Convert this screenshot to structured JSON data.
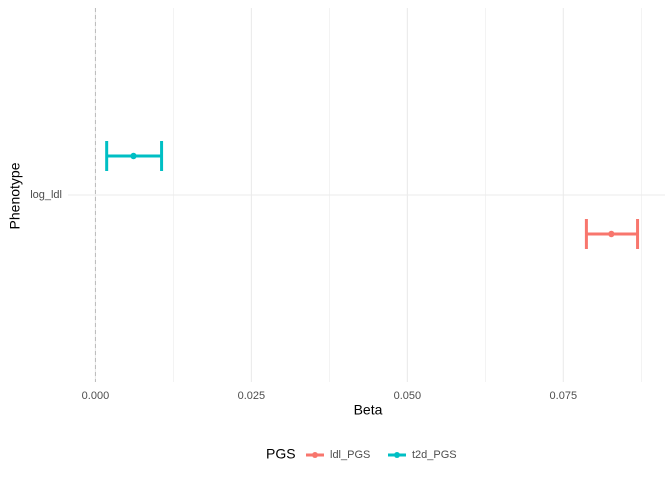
{
  "chart_data": {
    "type": "errorbar",
    "orientation": "horizontal",
    "x_label": "Beta",
    "y_label": "Phenotype",
    "categories": [
      "log_ldl"
    ],
    "series": [
      {
        "name": "ldl_PGS",
        "color": "#f8766d",
        "values": [
          0.0827
        ],
        "lower": [
          0.0787
        ],
        "upper": [
          0.0869
        ]
      },
      {
        "name": "t2d_PGS",
        "color": "#00bfc4",
        "values": [
          0.0061
        ],
        "lower": [
          0.0018
        ],
        "upper": [
          0.0106
        ]
      }
    ],
    "xlim": [
      -0.0044,
      0.0913
    ],
    "xticks": [
      {
        "value": 0,
        "label": "0.000"
      },
      {
        "value": 0.025,
        "label": "0.025"
      },
      {
        "value": 0.05,
        "label": "0.050"
      },
      {
        "value": 0.075,
        "label": "0.075"
      }
    ],
    "xminorticks": [
      0.0125,
      0.0375,
      0.0625,
      0.0875
    ],
    "vline": 0,
    "grid": true,
    "legend_title": "PGS",
    "legend_position": "bottom"
  }
}
